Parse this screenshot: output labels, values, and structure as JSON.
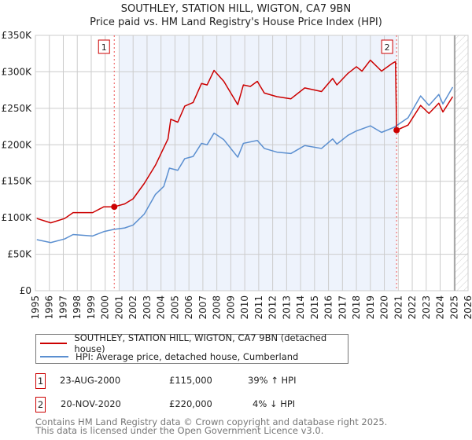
{
  "chart_data": {
    "type": "line",
    "title": "SOUTHLEY, STATION HILL, WIGTON, CA7 9BN",
    "subtitle": "Price paid vs. HM Land Registry's House Price Index (HPI)",
    "xlim": [
      1995,
      2026
    ],
    "ylim": [
      0,
      350000
    ],
    "x_ticks": [
      "1995",
      "1996",
      "1997",
      "1998",
      "1999",
      "2000",
      "2001",
      "2002",
      "2003",
      "2004",
      "2005",
      "2006",
      "2007",
      "2008",
      "2009",
      "2010",
      "2011",
      "2012",
      "2013",
      "2014",
      "2015",
      "2016",
      "2017",
      "2018",
      "2019",
      "2020",
      "2021",
      "2022",
      "2023",
      "2024",
      "2025",
      "2026"
    ],
    "y_ticks": [
      {
        "v": 0,
        "label": "£0"
      },
      {
        "v": 50000,
        "label": "£50K"
      },
      {
        "v": 100000,
        "label": "£100K"
      },
      {
        "v": 150000,
        "label": "£150K"
      },
      {
        "v": 200000,
        "label": "£200K"
      },
      {
        "v": 250000,
        "label": "£250K"
      },
      {
        "v": 300000,
        "label": "£300K"
      },
      {
        "v": 350000,
        "label": "£350K"
      }
    ],
    "grid": true,
    "shaded_range": [
      2001.0,
      2020.9
    ],
    "hatched_from": 2025.05,
    "series": [
      {
        "name": "SOUTHLEY, STATION HILL, WIGTON, CA7 9BN (detached house)",
        "color": "#cc0000",
        "x": [
          1995.1,
          1996.1,
          1997.1,
          1997.7,
          1999.1,
          1999.9,
          2000.65,
          2001.4,
          2002.0,
          2002.8,
          2003.6,
          2004.5,
          2004.7,
          2005.2,
          2005.7,
          2006.3,
          2006.9,
          2007.3,
          2007.8,
          2008.5,
          2009.5,
          2009.9,
          2010.4,
          2010.9,
          2011.4,
          2012.3,
          2013.3,
          2014.3,
          2015.5,
          2016.3,
          2016.6,
          2017.4,
          2018.0,
          2018.4,
          2019.0,
          2019.8,
          2020.6,
          2020.8,
          2020.88,
          2021.7,
          2022.6,
          2023.2,
          2023.9,
          2024.2,
          2024.9
        ],
        "y": [
          99000,
          93000,
          99000,
          107000,
          107000,
          115000,
          115000,
          119000,
          126000,
          147000,
          172000,
          208000,
          235000,
          231000,
          253000,
          258000,
          284000,
          282000,
          302000,
          287000,
          255000,
          282000,
          280000,
          287000,
          271000,
          266000,
          263000,
          278000,
          273000,
          291000,
          282000,
          298000,
          307000,
          301000,
          316000,
          301000,
          312000,
          314000,
          220000,
          227000,
          254000,
          243000,
          257000,
          245000,
          266000
        ]
      },
      {
        "name": "HPI: Average price, detached house, Cumberland",
        "color": "#5b8fd0",
        "x": [
          1995.1,
          1996.1,
          1997.1,
          1997.7,
          1999.1,
          1999.9,
          2000.6,
          2001.4,
          2002.0,
          2002.8,
          2003.6,
          2004.2,
          2004.6,
          2005.2,
          2005.7,
          2006.3,
          2006.9,
          2007.3,
          2007.8,
          2008.5,
          2009.5,
          2009.9,
          2010.9,
          2011.4,
          2012.3,
          2013.3,
          2014.3,
          2015.5,
          2016.3,
          2016.6,
          2017.4,
          2018.0,
          2019.0,
          2019.8,
          2020.7,
          2021.7,
          2022.6,
          2023.2,
          2023.9,
          2024.2,
          2024.9
        ],
        "y": [
          70000,
          66000,
          71000,
          77000,
          75000,
          81000,
          84000,
          86000,
          90000,
          105000,
          132000,
          143000,
          168000,
          165000,
          181000,
          184000,
          202000,
          200000,
          216000,
          207000,
          183000,
          202000,
          206000,
          195000,
          190000,
          188000,
          199000,
          195000,
          208000,
          201000,
          213000,
          219000,
          226000,
          217000,
          224000,
          237000,
          267000,
          254000,
          269000,
          256000,
          279000
        ]
      }
    ],
    "sales": [
      {
        "label": "1",
        "date": "23-AUG-2000",
        "x": 2000.65,
        "price": "£115,000",
        "value": 115000,
        "hpi": "39% ↑ HPI"
      },
      {
        "label": "2",
        "date": "20-NOV-2020",
        "x": 2020.88,
        "price": "£220,000",
        "value": 220000,
        "hpi": "4% ↓ HPI"
      }
    ]
  },
  "footer": {
    "line1": "Contains HM Land Registry data © Crown copyright and database right 2025.",
    "line2": "This data is licensed under the Open Government Licence v3.0."
  }
}
